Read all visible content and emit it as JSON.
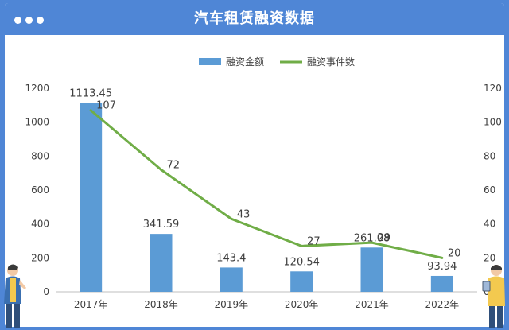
{
  "window": {
    "title": "汽车租赁融资数据"
  },
  "chart_data": {
    "type": "bar",
    "title": "汽车租赁融资数据",
    "categories": [
      "2017年",
      "2018年",
      "2019年",
      "2020年",
      "2021年",
      "2022年"
    ],
    "series": [
      {
        "name": "融资金额",
        "type": "bar",
        "axis": "left",
        "color": "#5b9bd5",
        "values": [
          1113.45,
          341.59,
          143.4,
          120.54,
          261.08,
          93.94
        ],
        "labels": [
          "1113.45",
          "341.59",
          "143.4",
          "120.54",
          "261.08",
          "93.94"
        ]
      },
      {
        "name": "融资事件数",
        "type": "line",
        "axis": "right",
        "color": "#70ad47",
        "values": [
          107,
          72,
          43,
          27,
          29,
          20
        ],
        "labels": [
          "107",
          "72",
          "43",
          "27",
          "29",
          "20"
        ]
      }
    ],
    "y_left": {
      "ylim": [
        0,
        1200
      ],
      "ticks": [
        0,
        200,
        400,
        600,
        800,
        1000,
        1200
      ]
    },
    "y_right": {
      "ylim": [
        0,
        120
      ],
      "ticks": [
        0,
        20,
        40,
        60,
        80,
        100,
        120
      ]
    },
    "legend_position": "top-right",
    "grid": false
  }
}
